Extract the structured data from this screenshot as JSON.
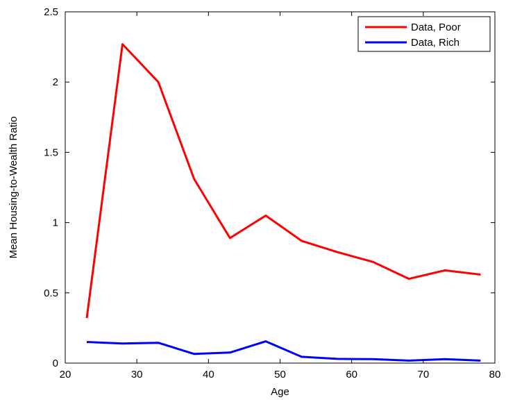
{
  "chart_data": {
    "type": "line",
    "title": "",
    "xlabel": "Age",
    "ylabel": "Mean Housing-to-Wealth Ratio",
    "xlim": [
      20,
      80
    ],
    "ylim": [
      0,
      2.5
    ],
    "xticks": [
      20,
      30,
      40,
      50,
      60,
      70,
      80
    ],
    "yticks": [
      0,
      0.5,
      1,
      1.5,
      2,
      2.5
    ],
    "xtick_labels": [
      "20",
      "30",
      "40",
      "50",
      "60",
      "70",
      "80"
    ],
    "ytick_labels": [
      "0",
      "0.5",
      "1",
      "1.5",
      "2",
      "2.5"
    ],
    "grid": false,
    "legend_position": "top-right",
    "x": [
      23,
      28,
      33,
      38,
      43,
      48,
      53,
      58,
      63,
      68,
      73,
      78
    ],
    "series": [
      {
        "name": "Data, Poor",
        "color": "#ff0000",
        "values": [
          0.32,
          2.27,
          2.0,
          1.31,
          0.89,
          1.05,
          0.87,
          0.79,
          0.72,
          0.6,
          0.66,
          0.63
        ]
      },
      {
        "name": "Data, Rich",
        "color": "#0000ff",
        "values": [
          0.15,
          0.14,
          0.145,
          0.065,
          0.075,
          0.155,
          0.045,
          0.03,
          0.028,
          0.018,
          0.028,
          0.018
        ]
      }
    ]
  }
}
